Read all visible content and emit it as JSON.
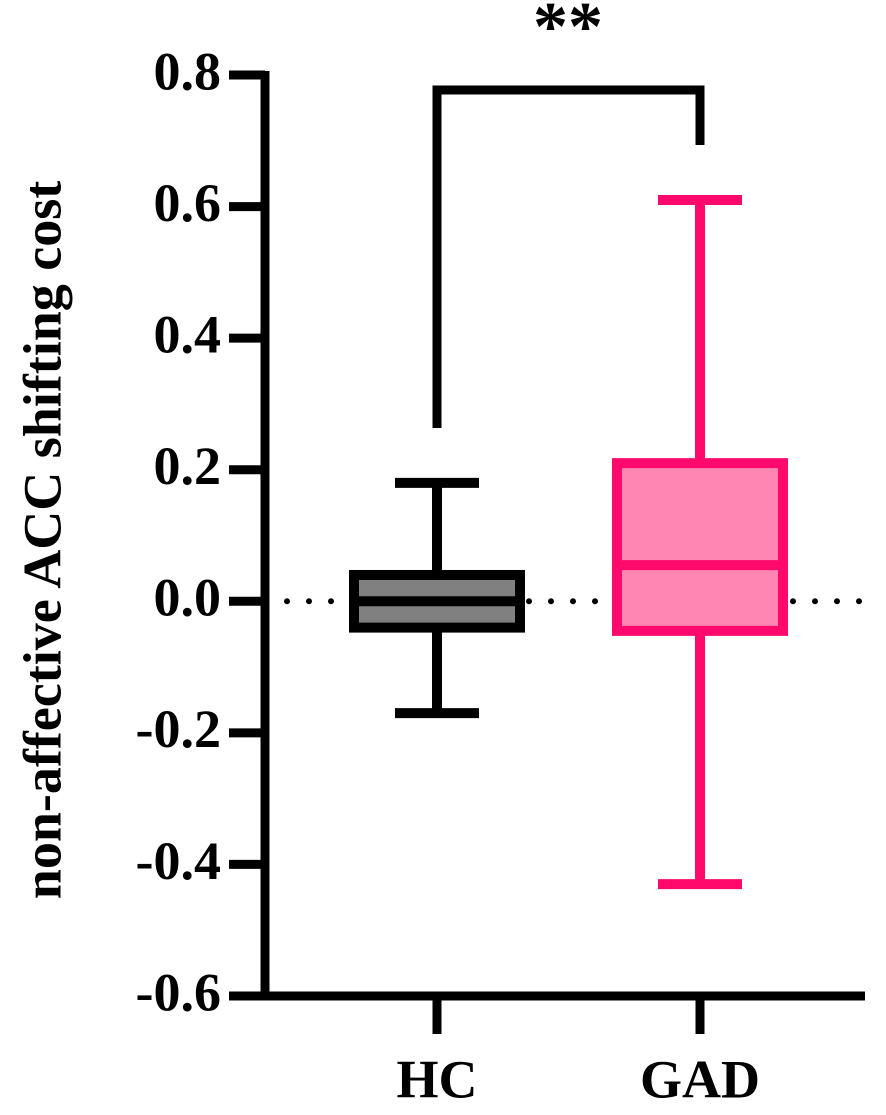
{
  "chart_data": {
    "type": "box",
    "y_label": "non-affective ACC shifting cost",
    "categories": [
      "HC",
      "GAD"
    ],
    "series": [
      {
        "name": "HC",
        "stroke": "#000000",
        "color": "#808080",
        "min": -0.17,
        "q1": -0.04,
        "median": 0.0,
        "q3": 0.04,
        "max": 0.18
      },
      {
        "name": "GAD",
        "stroke": "#ff0a6c",
        "color": "#ff85b3",
        "min": -0.43,
        "q1": -0.045,
        "median": 0.055,
        "q3": 0.21,
        "max": 0.61
      }
    ],
    "significance": "**",
    "reference_line": 0,
    "ylim": [
      -0.6,
      0.8
    ],
    "yticks": [
      {
        "value": 0.8,
        "label": "0.8"
      },
      {
        "value": 0.6,
        "label": "0.6"
      },
      {
        "value": 0.4,
        "label": "0.4"
      },
      {
        "value": 0.2,
        "label": "0.2"
      },
      {
        "value": 0,
        "label": "0.0"
      },
      {
        "value": -0.2,
        "label": "-0.2"
      },
      {
        "value": -0.4,
        "label": "-0.4"
      },
      {
        "value": -0.6,
        "label": "-0.6"
      }
    ]
  }
}
